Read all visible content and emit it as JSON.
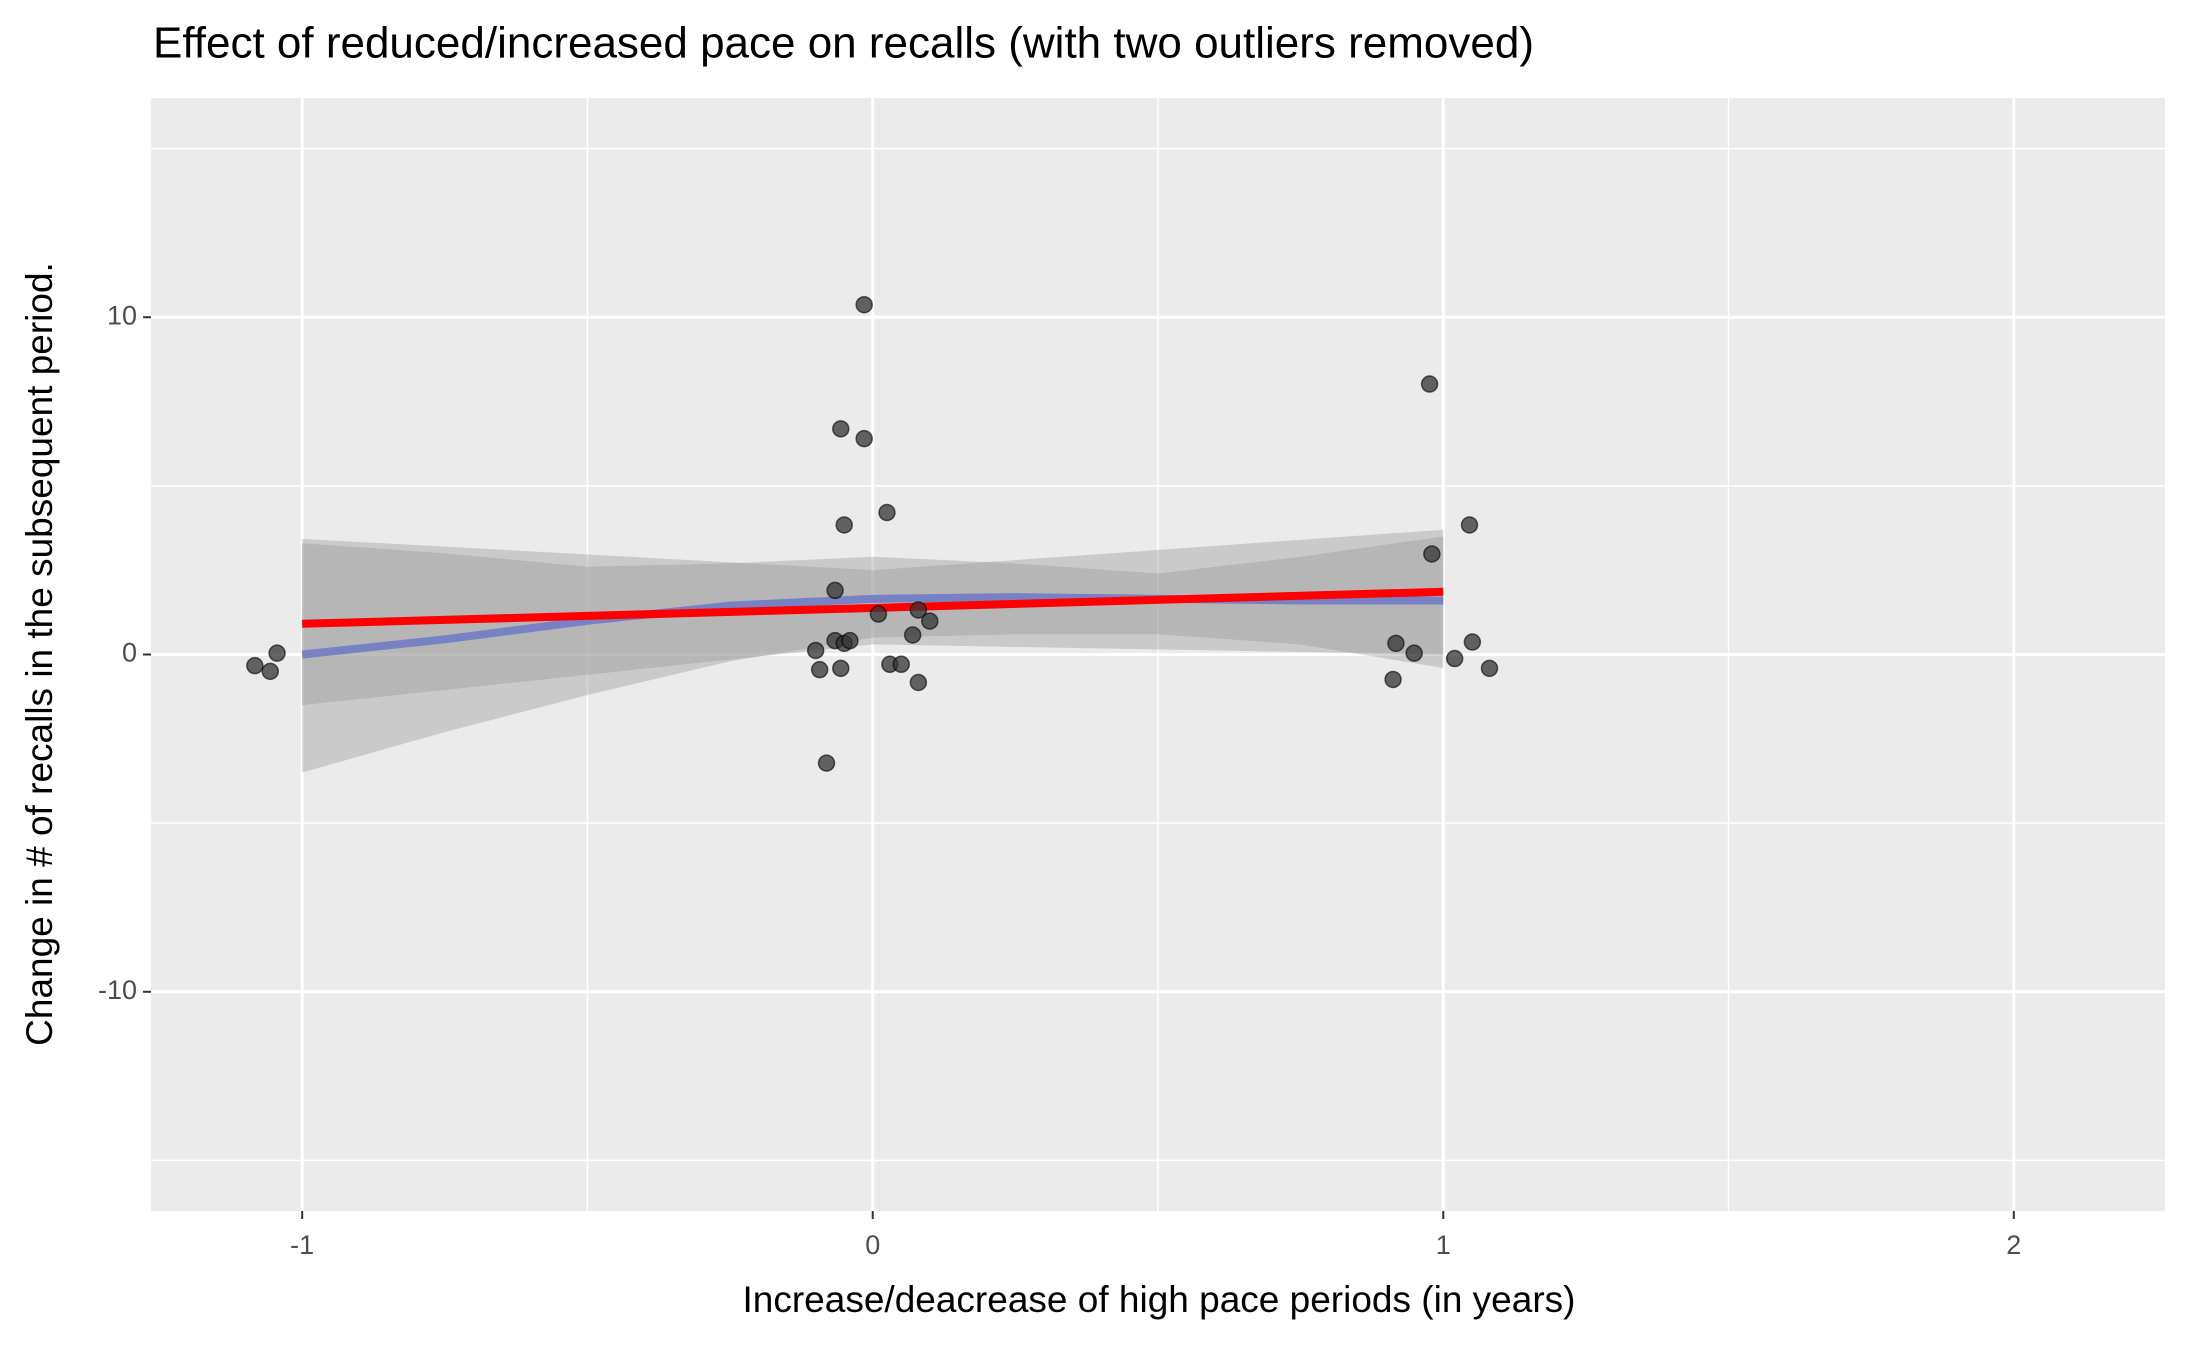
{
  "chart_data": {
    "type": "scatter",
    "title": "Effect of reduced/increased pace on recalls (with two outliers removed)",
    "x_label": "Increase/deacrease of high pace periods (in years)",
    "y_label": "Change in # of recalls in the subsequent period.",
    "xlim": [
      -1.265,
      2.265
    ],
    "ylim": [
      -16.5,
      16.5
    ],
    "xticks": [
      -1,
      0,
      1,
      2
    ],
    "yticks": [
      -10,
      0,
      10
    ],
    "minor_xticks": [
      -0.5,
      0.5,
      1.5
    ],
    "minor_yticks": [
      -15,
      -5,
      5,
      15
    ],
    "grid": true,
    "series": [
      {
        "type": "scatter",
        "color": "#333333",
        "x": [
          -1.083,
          -1.056,
          -1.044,
          -0.1,
          -0.093,
          -0.056,
          -0.081,
          -0.066,
          -0.066,
          -0.056,
          -0.05,
          -0.015,
          -0.015,
          0.025,
          -0.05,
          -0.04,
          0.01,
          0.03,
          0.05,
          0.07,
          0.08,
          0.1,
          0.08,
          0.976,
          0.98,
          0.917,
          0.912,
          0.949,
          1.02,
          1.046,
          1.051,
          1.081
        ],
        "values": [
          -0.33,
          -0.5,
          0.04,
          0.12,
          -0.45,
          -0.41,
          -3.22,
          0.41,
          1.9,
          6.69,
          3.84,
          10.37,
          6.4,
          4.21,
          0.33,
          0.41,
          1.2,
          -0.29,
          -0.29,
          0.58,
          1.32,
          0.99,
          -0.83,
          8.02,
          2.98,
          0.33,
          -0.74,
          0.04,
          -0.12,
          3.84,
          0.37,
          -0.41
        ]
      },
      {
        "type": "line",
        "color": "#6272e0",
        "band_color": "#999999",
        "x": [
          -1,
          -0.75,
          -0.5,
          -0.25,
          0,
          0.25,
          0.5,
          0.75,
          1
        ],
        "values": [
          0,
          0.45,
          1.0,
          1.45,
          1.65,
          1.7,
          1.65,
          1.6,
          1.6
        ],
        "lower": [
          -3.5,
          -2.3,
          -1.2,
          -0.2,
          0.5,
          0.6,
          0.6,
          0.3,
          -0.4
        ],
        "upper": [
          3.3,
          3.0,
          2.6,
          2.7,
          2.9,
          2.7,
          2.4,
          2.9,
          3.5
        ]
      },
      {
        "type": "line",
        "color": "#ff0000",
        "band_color": "#999999",
        "x": [
          -1,
          0,
          1
        ],
        "values": [
          0.91,
          1.38,
          1.86
        ],
        "lower": [
          -1.5,
          0.3,
          0.0
        ],
        "upper": [
          3.43,
          2.5,
          3.7
        ]
      }
    ]
  }
}
